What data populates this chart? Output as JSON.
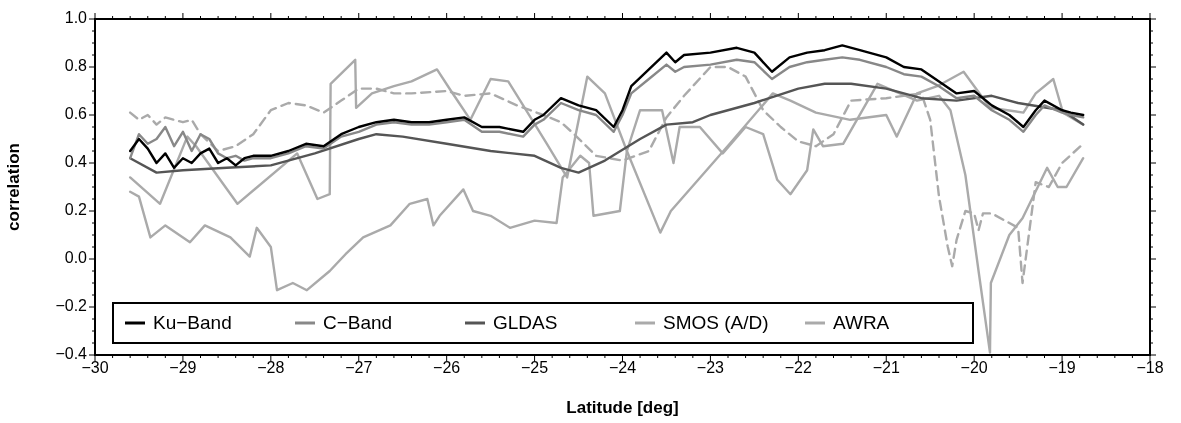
{
  "chart_data": {
    "type": "line",
    "xlabel": "Latitude [deg]",
    "ylabel": "correlation",
    "xlim": [
      -30,
      -18
    ],
    "xticks": [
      {
        "value": -30,
        "label": "−30"
      },
      {
        "value": -29,
        "label": "−29"
      },
      {
        "value": -28,
        "label": "−28"
      },
      {
        "value": -27,
        "label": "−27"
      },
      {
        "value": -26,
        "label": "−26"
      },
      {
        "value": -25,
        "label": "−25"
      },
      {
        "value": -24,
        "label": "−24"
      },
      {
        "value": -23,
        "label": "−23"
      },
      {
        "value": -22,
        "label": "−22"
      },
      {
        "value": -21,
        "label": "−21"
      },
      {
        "value": -20,
        "label": "−20"
      },
      {
        "value": -19,
        "label": "−19"
      },
      {
        "value": -18,
        "label": "−18"
      }
    ],
    "ylim": [
      -0.4,
      1.0
    ],
    "yticks": [
      {
        "value": -0.4,
        "label": "−0.4"
      },
      {
        "value": -0.2,
        "label": "−0.2"
      },
      {
        "value": 0,
        "label": "0.0"
      },
      {
        "value": 0.2,
        "label": "0.2"
      },
      {
        "value": 0.4,
        "label": "0.4"
      },
      {
        "value": 0.6,
        "label": "0.6"
      },
      {
        "value": 0.8,
        "label": "0.8"
      },
      {
        "value": 1.0,
        "label": "1.0"
      }
    ],
    "legend": "bottom left",
    "grid": false,
    "marker": "none",
    "line_style": "solid",
    "series": [
      {
        "name": "Ku−Band",
        "color": "#000000",
        "x": [
          -29.6,
          -29.5,
          -29.4,
          -29.3,
          -29.2,
          -29.1,
          -29.0,
          -28.9,
          -28.8,
          -28.7,
          -28.6,
          -28.5,
          -28.4,
          -28.3,
          -28.2,
          -28.0,
          -27.8,
          -27.6,
          -27.4,
          -27.2,
          -27.0,
          -26.8,
          -26.6,
          -26.4,
          -26.2,
          -26.0,
          -25.8,
          -25.6,
          -25.4,
          -25.13,
          -25.0,
          -24.9,
          -24.7,
          -24.5,
          -24.3,
          -24.1,
          -24.0,
          -23.9,
          -23.7,
          -23.5,
          -23.4,
          -23.3,
          -23.0,
          -22.7,
          -22.5,
          -22.3,
          -22.1,
          -21.9,
          -21.7,
          -21.5,
          -21.3,
          -21.0,
          -20.8,
          -20.6,
          -20.4,
          -20.2,
          -20.0,
          -19.8,
          -19.6,
          -19.44,
          -19.3,
          -19.2,
          -19.0,
          -18.9,
          -18.76
        ],
        "values": [
          0.45,
          0.5,
          0.46,
          0.4,
          0.44,
          0.38,
          0.42,
          0.4,
          0.44,
          0.46,
          0.4,
          0.42,
          0.39,
          0.42,
          0.43,
          0.43,
          0.45,
          0.48,
          0.47,
          0.52,
          0.55,
          0.57,
          0.58,
          0.57,
          0.57,
          0.58,
          0.59,
          0.55,
          0.55,
          0.53,
          0.58,
          0.6,
          0.67,
          0.64,
          0.62,
          0.55,
          0.62,
          0.72,
          0.79,
          0.86,
          0.82,
          0.85,
          0.86,
          0.88,
          0.86,
          0.78,
          0.84,
          0.86,
          0.87,
          0.89,
          0.87,
          0.84,
          0.8,
          0.79,
          0.74,
          0.69,
          0.7,
          0.64,
          0.6,
          0.55,
          0.62,
          0.66,
          0.62,
          0.61,
          0.6
        ]
      },
      {
        "name": "C−Band",
        "color": "#888888",
        "x": [
          -29.6,
          -29.5,
          -29.4,
          -29.3,
          -29.2,
          -29.1,
          -29.0,
          -28.9,
          -28.8,
          -28.7,
          -28.6,
          -28.5,
          -28.4,
          -28.3,
          -28.2,
          -28.0,
          -27.8,
          -27.6,
          -27.4,
          -27.2,
          -27.0,
          -26.8,
          -26.6,
          -26.4,
          -26.2,
          -26.0,
          -25.8,
          -25.6,
          -25.4,
          -25.13,
          -25.0,
          -24.9,
          -24.7,
          -24.5,
          -24.3,
          -24.1,
          -24.0,
          -23.9,
          -23.7,
          -23.5,
          -23.4,
          -23.3,
          -23.0,
          -22.7,
          -22.5,
          -22.3,
          -22.1,
          -21.9,
          -21.7,
          -21.5,
          -21.3,
          -21.0,
          -20.8,
          -20.6,
          -20.4,
          -20.2,
          -20.0,
          -19.8,
          -19.6,
          -19.44,
          -19.3,
          -19.2,
          -19.0,
          -18.9,
          -18.76
        ],
        "values": [
          0.42,
          0.52,
          0.48,
          0.5,
          0.55,
          0.47,
          0.53,
          0.45,
          0.52,
          0.5,
          0.44,
          0.42,
          0.43,
          0.41,
          0.42,
          0.42,
          0.44,
          0.47,
          0.46,
          0.51,
          0.53,
          0.56,
          0.57,
          0.56,
          0.56,
          0.57,
          0.58,
          0.53,
          0.53,
          0.51,
          0.56,
          0.58,
          0.65,
          0.62,
          0.6,
          0.53,
          0.6,
          0.69,
          0.75,
          0.81,
          0.78,
          0.8,
          0.81,
          0.83,
          0.82,
          0.75,
          0.8,
          0.82,
          0.83,
          0.84,
          0.83,
          0.8,
          0.77,
          0.76,
          0.72,
          0.67,
          0.68,
          0.62,
          0.58,
          0.53,
          0.6,
          0.64,
          0.61,
          0.6,
          0.59
        ]
      },
      {
        "name": "GLDAS",
        "color": "#555555",
        "x": [
          -29.6,
          -29.3,
          -29.0,
          -28.5,
          -28.0,
          -27.5,
          -27.0,
          -26.8,
          -26.5,
          -26.0,
          -25.5,
          -25.0,
          -24.7,
          -24.5,
          -24.2,
          -23.8,
          -23.5,
          -23.2,
          -23.0,
          -22.5,
          -22.0,
          -21.7,
          -21.4,
          -21.0,
          -20.6,
          -20.2,
          -19.8,
          -19.5,
          -19.0,
          -18.76
        ],
        "values": [
          0.42,
          0.36,
          0.37,
          0.38,
          0.39,
          0.44,
          0.5,
          0.52,
          0.51,
          0.48,
          0.45,
          0.43,
          0.38,
          0.36,
          0.41,
          0.5,
          0.56,
          0.57,
          0.6,
          0.65,
          0.71,
          0.73,
          0.73,
          0.71,
          0.67,
          0.66,
          0.68,
          0.65,
          0.62,
          0.56
        ]
      },
      {
        "name": "SMOS (A/D)",
        "color": "#aaaaaa",
        "x": [
          -29.6,
          -29.5,
          -29.37,
          -29.2,
          -28.92,
          -28.75,
          -28.46,
          -28.24,
          -28.16,
          -28.0,
          -27.93,
          -27.75,
          -27.59,
          -27.33,
          -27.15,
          -26.95,
          -26.64,
          -26.42,
          -26.22,
          -26.15,
          -26.08,
          -25.81,
          -25.7,
          -25.5,
          -25.28,
          -25.0,
          -24.75,
          -24.68,
          -24.48,
          -24.38,
          -24.33,
          -24.03,
          -23.95,
          -23.8,
          -23.55,
          -23.42,
          -23.35,
          -23.12,
          -22.86,
          -22.6,
          -22.4,
          -22.24,
          -22.09,
          -21.9,
          -21.83,
          -21.72,
          -21.49,
          -21.1,
          -20.65,
          -20.4,
          -20.27,
          -20.1,
          -19.95,
          -19.82,
          -19.81,
          -19.6,
          -19.45,
          -19.17,
          -19.05,
          -18.95,
          -18.76
        ],
        "values": [
          0.28,
          0.26,
          0.09,
          0.14,
          0.07,
          0.14,
          0.09,
          0.01,
          0.13,
          0.05,
          -0.13,
          -0.1,
          -0.13,
          -0.05,
          0.02,
          0.09,
          0.14,
          0.23,
          0.25,
          0.14,
          0.18,
          0.29,
          0.2,
          0.18,
          0.13,
          0.16,
          0.15,
          0.34,
          0.43,
          0.4,
          0.18,
          0.2,
          0.45,
          0.62,
          0.62,
          0.4,
          0.55,
          0.55,
          0.44,
          0.55,
          0.52,
          0.33,
          0.27,
          0.37,
          0.54,
          0.47,
          0.48,
          0.73,
          0.66,
          0.68,
          0.62,
          0.35,
          -0.05,
          -0.39,
          -0.1,
          0.1,
          0.17,
          0.38,
          0.3,
          0.3,
          0.42
        ]
      },
      {
        "color": "#aaaaaa",
        "line_style": "dashed",
        "x": [
          -29.6,
          -29.5,
          -29.4,
          -29.3,
          -29.2,
          -29.0,
          -28.9,
          -28.8,
          -28.6,
          -28.4,
          -28.2,
          -28.0,
          -27.8,
          -27.6,
          -27.4,
          -27.2,
          -27.0,
          -26.8,
          -26.6,
          -26.4,
          -26.0,
          -25.8,
          -25.5,
          -25.2,
          -24.9,
          -24.7,
          -24.55,
          -24.3,
          -24.0,
          -23.7,
          -23.5,
          -23.3,
          -23.0,
          -22.8,
          -22.6,
          -22.4,
          -22.2,
          -22.0,
          -21.8,
          -21.6,
          -21.4,
          -21.0,
          -20.6,
          -20.5,
          -20.4,
          -20.3,
          -20.25,
          -20.2,
          -20.1,
          -20.0,
          -19.95,
          -19.9,
          -19.8,
          -19.5,
          -19.45,
          -19.3,
          -19.15,
          -19.0,
          -18.76
        ],
        "values": [
          0.61,
          0.58,
          0.6,
          0.56,
          0.59,
          0.57,
          0.58,
          0.52,
          0.45,
          0.47,
          0.52,
          0.62,
          0.65,
          0.64,
          0.61,
          0.66,
          0.71,
          0.71,
          0.69,
          0.69,
          0.7,
          0.68,
          0.69,
          0.64,
          0.6,
          0.57,
          0.52,
          0.43,
          0.41,
          0.45,
          0.59,
          0.68,
          0.8,
          0.8,
          0.76,
          0.62,
          0.55,
          0.49,
          0.47,
          0.52,
          0.66,
          0.67,
          0.69,
          0.58,
          0.26,
          0.05,
          -0.03,
          0.08,
          0.2,
          0.19,
          0.12,
          0.19,
          0.19,
          0.13,
          -0.1,
          0.32,
          0.3,
          0.4,
          0.48
        ]
      },
      {
        "name": "AWRA",
        "color": "#aaaaaa",
        "x": [
          -29.6,
          -29.26,
          -28.95,
          -28.85,
          -28.38,
          -27.7,
          -27.47,
          -27.33,
          -27.32,
          -27.04,
          -27.03,
          -26.85,
          -26.6,
          -26.4,
          -26.11,
          -25.95,
          -25.73,
          -25.5,
          -25.3,
          -25.13,
          -24.86,
          -24.63,
          -24.4,
          -24.2,
          -23.95,
          -23.57,
          -23.45,
          -22.78,
          -22.29,
          -22.09,
          -21.8,
          -21.41,
          -21.0,
          -20.88,
          -20.65,
          -20.42,
          -20.12,
          -19.82,
          -19.44,
          -19.3,
          -19.1,
          -18.99,
          -18.76
        ],
        "values": [
          0.34,
          0.23,
          0.51,
          0.47,
          0.23,
          0.44,
          0.25,
          0.27,
          0.73,
          0.83,
          0.63,
          0.69,
          0.72,
          0.74,
          0.79,
          0.7,
          0.58,
          0.75,
          0.74,
          0.64,
          0.48,
          0.34,
          0.76,
          0.69,
          0.45,
          0.11,
          0.2,
          0.48,
          0.69,
          0.66,
          0.61,
          0.58,
          0.6,
          0.51,
          0.69,
          0.72,
          0.78,
          0.63,
          0.61,
          0.69,
          0.75,
          0.61,
          0.56
        ]
      }
    ]
  }
}
